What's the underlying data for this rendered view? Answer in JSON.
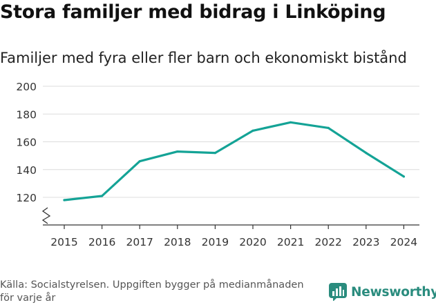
{
  "header": {
    "title": "Stora familjer med bidrag i Linköping",
    "subtitle": "Familjer med fyra eller fler barn och ekonomiskt bistånd"
  },
  "footer": {
    "source_line1": "Källa: Socialstyrelsen. Uppgiften bygger på medianmånaden",
    "source_line2": "för varje år",
    "brand_name": "Newsworthy"
  },
  "colors": {
    "line": "#14a396",
    "grid": "#dcdcdc",
    "axis": "#333333",
    "brand": "#2a8c7e"
  },
  "chart_data": {
    "type": "line",
    "title": "Stora familjer med bidrag i Linköping",
    "subtitle": "Familjer med fyra eller fler barn och ekonomiskt bistånd",
    "xlabel": "",
    "ylabel": "",
    "x": [
      "2015",
      "2016",
      "2017",
      "2018",
      "2019",
      "2020",
      "2021",
      "2022",
      "2023",
      "2024"
    ],
    "series": [
      {
        "name": "Familjer med fyra eller fler barn och ekonomiskt bistånd",
        "values": [
          118,
          121,
          146,
          153,
          152,
          168,
          174,
          170,
          152,
          135
        ]
      }
    ],
    "yticks": [
      120,
      140,
      160,
      180,
      200
    ],
    "ylim": [
      100,
      200
    ],
    "y_axis_broken": true,
    "grid": true,
    "legend": "none"
  }
}
